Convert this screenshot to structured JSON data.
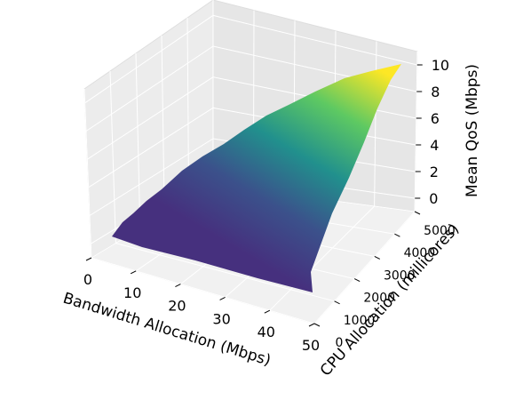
{
  "chart_data": {
    "type": "surface",
    "title": "",
    "xlabel": "Bandwidth Allocation (Mbps)",
    "ylabel": "CPU Allocation (millicores)",
    "zlabel": "Mean QoS (Mbps)",
    "xlim": [
      0,
      50
    ],
    "ylim": [
      0,
      5000
    ],
    "zlim": [
      -1,
      11
    ],
    "x_ticks": [
      0,
      10,
      20,
      30,
      40,
      50
    ],
    "y_ticks": [
      0,
      1000,
      2000,
      3000,
      4000,
      5000
    ],
    "z_ticks": [
      0,
      2,
      4,
      6,
      8,
      10
    ],
    "colormap": "viridis",
    "surface_samples": [
      {
        "bandwidth": 0,
        "cpu": 0,
        "qos": 0.6
      },
      {
        "bandwidth": 50,
        "cpu": 0,
        "qos": 0.5
      },
      {
        "bandwidth": 0,
        "cpu": 5000,
        "qos": 7.5
      },
      {
        "bandwidth": 50,
        "cpu": 5000,
        "qos": 10.5
      }
    ],
    "grid": true
  }
}
